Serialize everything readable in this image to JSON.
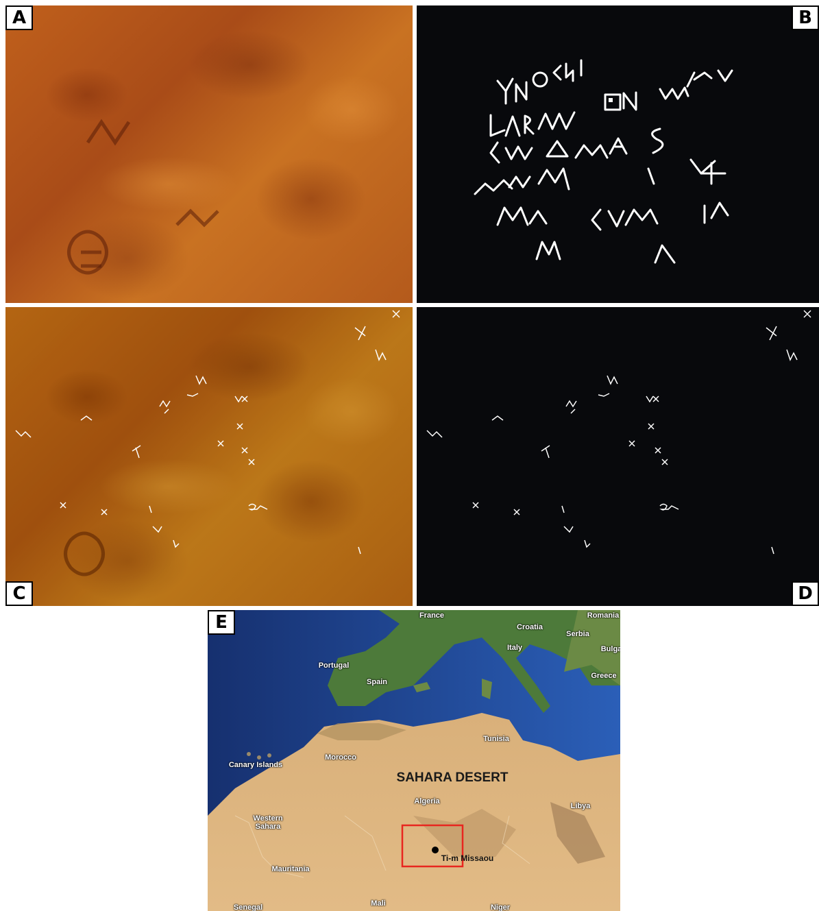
{
  "panels": [
    "A",
    "B",
    "C",
    "D",
    "E"
  ],
  "map": {
    "labels": [
      "France",
      "Romania",
      "Croatia",
      "Serbia",
      "Italy",
      "Bulga",
      "Portugal",
      "Spain",
      "Greece",
      "Tunisia",
      "Canary Islands",
      "Morocco",
      "SAHARA DESERT",
      "Algeria",
      "Libya",
      "Western Sahara",
      "Mauritania",
      "Ti-m Missaou",
      "Senegal",
      "Mali",
      "Niger"
    ]
  }
}
